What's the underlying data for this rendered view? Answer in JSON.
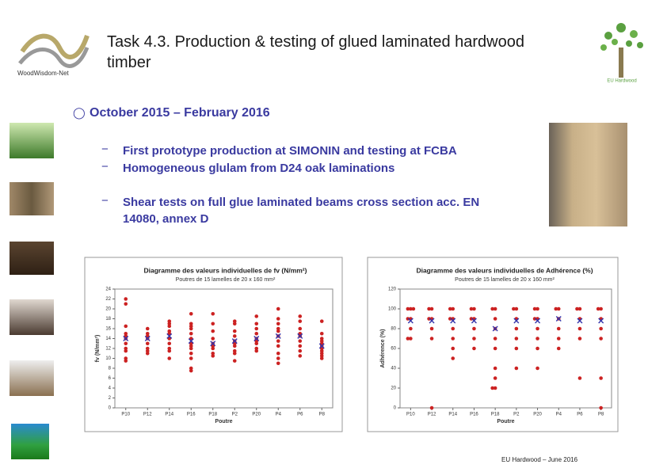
{
  "header": {
    "title": "Task 4.3. Production & testing of glued laminated hardwood timber",
    "logo_left": "WoodWisdom-Net",
    "logo_right": "EU Hardwood"
  },
  "bullets": {
    "main": "October 2015 – February 2016",
    "sub": [
      "First prototype production at SIMONIN and testing at FCBA",
      "Homogeneous glulam from D24 oak laminations",
      "Shear tests on full glue laminated beams cross section acc. EN 14080, annex D"
    ]
  },
  "footer": "EU Hardwood – June 2016",
  "chart_data": [
    {
      "type": "strip",
      "title": "Diagramme des valeurs individuelles de fv (N/mm²)",
      "subtitle": "Poutres de 15 lamelles de 20 x 160 mm²",
      "x_label": "Poutre",
      "y_label": "fv (N/mm²)",
      "categories": [
        "P10",
        "P12",
        "P14",
        "P16",
        "P18",
        "P2",
        "P20",
        "P4",
        "P6",
        "P8"
      ],
      "values": [
        [
          22,
          21,
          16.5,
          15,
          14.5,
          14,
          13,
          12,
          11.5,
          10,
          9.5
        ],
        [
          16,
          15,
          14.5,
          14,
          13,
          12,
          11.5,
          11
        ],
        [
          17.5,
          17,
          16.5,
          15.5,
          15,
          14,
          13,
          12,
          11.5,
          10
        ],
        [
          19,
          17,
          16.5,
          16,
          15,
          14,
          13,
          12.5,
          12,
          11,
          10,
          8,
          7.5
        ],
        [
          19,
          17,
          15.5,
          14,
          13,
          12.5,
          12,
          11,
          10.5
        ],
        [
          17.5,
          17,
          15.5,
          14.5,
          13.5,
          13,
          12.5,
          11.5,
          11,
          9.5
        ],
        [
          18.5,
          17,
          16,
          15,
          14,
          13.5,
          13,
          12,
          11.5
        ],
        [
          20,
          18,
          17,
          16,
          15.5,
          14.5,
          13.5,
          12.5,
          11,
          10,
          9
        ],
        [
          18.5,
          17.5,
          16,
          15,
          14.5,
          13.5,
          12.5,
          11.5,
          10.5
        ],
        [
          17.5,
          15,
          14,
          13.5,
          13,
          12.5,
          12,
          11.5,
          11,
          10.5,
          10
        ]
      ],
      "means": [
        14,
        14,
        14.5,
        13.5,
        13,
        13.5,
        14,
        14.5,
        14.5,
        12.5
      ],
      "point_color": "#cc2222",
      "mean_color": "#3333aa",
      "ylim": [
        0,
        24
      ],
      "yticks": [
        0,
        2,
        4,
        6,
        8,
        10,
        12,
        14,
        16,
        18,
        20,
        22,
        24
      ]
    },
    {
      "type": "strip",
      "title": "Diagramme des valeurs individuelles de Adhérence (%)",
      "subtitle": "Poutres de 15 lamelles de 20 x 160 mm²",
      "x_label": "Poutre",
      "y_label": "Adhérence (%)",
      "categories": [
        "P10",
        "P12",
        "P14",
        "P16",
        "P18",
        "P2",
        "P20",
        "P4",
        "P6",
        "P8"
      ],
      "values": [
        [
          100,
          100,
          100,
          90,
          90,
          80,
          70,
          70
        ],
        [
          100,
          100,
          90,
          90,
          80,
          70,
          0
        ],
        [
          100,
          100,
          90,
          90,
          80,
          70,
          60,
          50
        ],
        [
          100,
          100,
          90,
          90,
          80,
          70,
          60
        ],
        [
          100,
          100,
          90,
          80,
          70,
          60,
          40,
          30,
          20,
          20
        ],
        [
          100,
          100,
          90,
          80,
          70,
          60,
          40
        ],
        [
          100,
          100,
          90,
          90,
          80,
          70,
          60,
          40
        ],
        [
          100,
          100,
          90,
          80,
          70,
          60
        ],
        [
          100,
          100,
          90,
          80,
          70,
          30
        ],
        [
          100,
          100,
          90,
          80,
          70,
          30,
          0
        ]
      ],
      "means": [
        88,
        88,
        88,
        88,
        80,
        88,
        88,
        90,
        88,
        88
      ],
      "point_color": "#cc2222",
      "mean_color": "#3333aa",
      "ylim": [
        0,
        120
      ],
      "yticks": [
        0,
        20,
        40,
        60,
        80,
        100,
        120
      ]
    }
  ]
}
